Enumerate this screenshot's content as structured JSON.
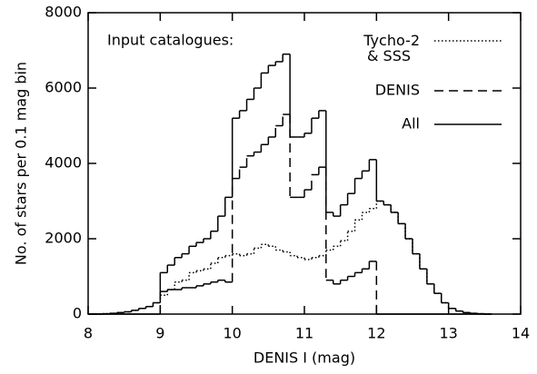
{
  "chart_data": {
    "type": "step-histogram",
    "annotation": "Input catalogues:",
    "x_label": "DENIS I (mag)",
    "y_label": "No. of stars per 0.1 mag bin",
    "xlim": [
      8,
      14
    ],
    "xticks": [
      8,
      9,
      10,
      11,
      12,
      13,
      14
    ],
    "ylim": [
      0,
      8000
    ],
    "yticks": [
      0,
      2000,
      4000,
      6000,
      8000
    ],
    "bins": [
      8.0,
      8.1,
      8.2,
      8.3,
      8.4,
      8.5,
      8.6,
      8.7,
      8.8,
      8.9,
      9.0,
      9.1,
      9.2,
      9.3,
      9.4,
      9.5,
      9.6,
      9.7,
      9.8,
      9.9,
      10.0,
      10.1,
      10.2,
      10.3,
      10.4,
      10.5,
      10.6,
      10.7,
      10.8,
      10.9,
      11.0,
      11.1,
      11.2,
      11.3,
      11.4,
      11.5,
      11.6,
      11.7,
      11.8,
      11.9,
      12.0,
      12.1,
      12.2,
      12.3,
      12.4,
      12.5,
      12.6,
      12.7,
      12.8,
      12.9,
      13.0,
      13.1,
      13.2,
      13.3,
      13.4,
      13.5,
      13.6
    ],
    "series": [
      {
        "name": "Tycho-2 & SSS",
        "color": "#000000",
        "dash": "dotted",
        "values": [
          0,
          0,
          10,
          20,
          40,
          60,
          100,
          150,
          200,
          300,
          500,
          650,
          850,
          900,
          1100,
          1150,
          1200,
          1350,
          1500,
          1550,
          1600,
          1550,
          1600,
          1750,
          1850,
          1800,
          1700,
          1650,
          1550,
          1500,
          1450,
          1500,
          1550,
          1700,
          1800,
          1950,
          2200,
          2500,
          2700,
          2800,
          3000,
          2900,
          2700,
          2400,
          2000,
          1600,
          1200,
          800,
          550,
          300,
          150,
          80,
          40,
          20,
          10,
          0
        ]
      },
      {
        "name": "DENIS",
        "color": "#000000",
        "dash": "dashed",
        "values": [
          0,
          0,
          0,
          0,
          0,
          0,
          0,
          0,
          0,
          0,
          600,
          650,
          650,
          700,
          700,
          750,
          800,
          850,
          900,
          850,
          3600,
          3900,
          4200,
          4300,
          4500,
          4700,
          5000,
          5300,
          3100,
          3100,
          3300,
          3700,
          3900,
          900,
          800,
          900,
          1000,
          1100,
          1200,
          1400,
          0,
          0,
          0,
          0,
          0,
          0,
          0,
          0,
          0,
          0,
          0,
          0,
          0,
          0,
          0,
          0
        ]
      },
      {
        "name": "All",
        "color": "#000000",
        "dash": "solid",
        "values": [
          0,
          0,
          10,
          20,
          40,
          60,
          100,
          150,
          200,
          300,
          1100,
          1300,
          1500,
          1600,
          1800,
          1900,
          2000,
          2200,
          2600,
          3100,
          5200,
          5400,
          5700,
          6000,
          6400,
          6600,
          6700,
          6900,
          4700,
          4700,
          4800,
          5200,
          5400,
          2700,
          2600,
          2900,
          3200,
          3600,
          3800,
          4100,
          3000,
          2900,
          2700,
          2400,
          2000,
          1600,
          1200,
          800,
          550,
          300,
          150,
          80,
          40,
          20,
          10,
          0
        ]
      }
    ]
  }
}
